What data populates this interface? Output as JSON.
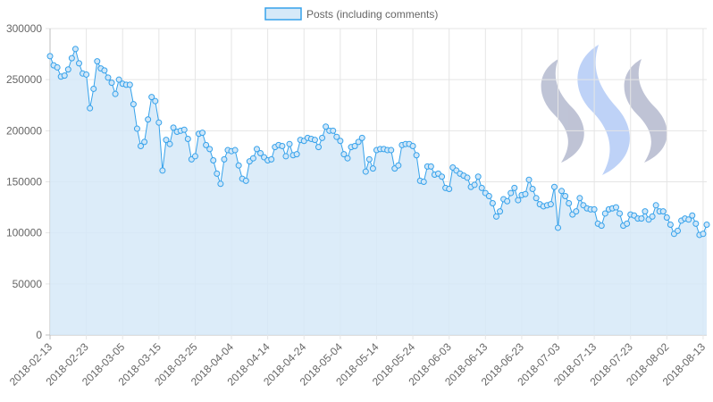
{
  "chart_data": {
    "type": "area",
    "legend": {
      "position": "top",
      "label": "Posts (including comments)"
    },
    "colors": {
      "line": "#36a2eb",
      "fill": "#d6e9f8",
      "grid": "#e5e5e5",
      "logo_gray": "#aab0c8",
      "logo_blue": "#a9c4f5"
    },
    "y_axis": {
      "min": 0,
      "max": 300000,
      "ticks": [
        "0",
        "50000",
        "100000",
        "150000",
        "200000",
        "250000",
        "300000"
      ]
    },
    "x_axis": {
      "tick_labels": [
        "2018-02-13",
        "2018-02-23",
        "2018-03-05",
        "2018-03-15",
        "2018-03-25",
        "2018-04-04",
        "2018-04-14",
        "2018-04-24",
        "2018-05-04",
        "2018-05-14",
        "2018-05-24",
        "2018-06-03",
        "2018-06-13",
        "2018-06-23",
        "2018-07-03",
        "2018-07-13",
        "2018-07-23",
        "2018-08-02",
        "2018-08-13"
      ]
    },
    "grid": true,
    "start_date": "2018-02-13",
    "series": [
      {
        "name": "Posts (including comments)",
        "values": [
          273000,
          264000,
          262000,
          253000,
          254000,
          260000,
          271000,
          280000,
          266000,
          256000,
          255000,
          222000,
          241000,
          268000,
          261000,
          259000,
          252000,
          247000,
          236000,
          250000,
          246000,
          245000,
          245000,
          226000,
          202000,
          185000,
          189000,
          211000,
          233000,
          229000,
          208000,
          161000,
          191000,
          187000,
          203000,
          199000,
          200000,
          201000,
          192000,
          172000,
          175000,
          197000,
          198000,
          186000,
          182000,
          171000,
          158000,
          148000,
          172000,
          181000,
          180000,
          181000,
          166000,
          153000,
          151000,
          170000,
          173000,
          182000,
          178000,
          174000,
          171000,
          172000,
          184000,
          186000,
          185000,
          175000,
          187000,
          176000,
          177000,
          191000,
          190000,
          193000,
          192000,
          191000,
          184000,
          193000,
          204000,
          200000,
          200000,
          194000,
          190000,
          177000,
          173000,
          184000,
          185000,
          189000,
          193000,
          160000,
          172000,
          163000,
          181000,
          182000,
          182000,
          181000,
          181000,
          163000,
          166000,
          186000,
          187000,
          187000,
          185000,
          176000,
          151000,
          150000,
          165000,
          165000,
          157000,
          158000,
          155000,
          144000,
          143000,
          164000,
          161000,
          158000,
          156000,
          154000,
          145000,
          147000,
          155000,
          144000,
          139000,
          136000,
          129000,
          116000,
          121000,
          133000,
          131000,
          139000,
          144000,
          132000,
          137000,
          138000,
          152000,
          143000,
          134000,
          128000,
          126000,
          127000,
          128000,
          145000,
          105000,
          141000,
          136000,
          129000,
          118000,
          121000,
          134000,
          127000,
          124000,
          123000,
          123000,
          109000,
          107000,
          119000,
          123000,
          124000,
          125000,
          119000,
          107000,
          109000,
          118000,
          117000,
          114000,
          114000,
          121000,
          113000,
          116000,
          127000,
          121000,
          121000,
          115000,
          108000,
          99000,
          102000,
          112000,
          114000,
          113000,
          117000,
          109000,
          98000,
          99000,
          108000
        ]
      }
    ]
  }
}
